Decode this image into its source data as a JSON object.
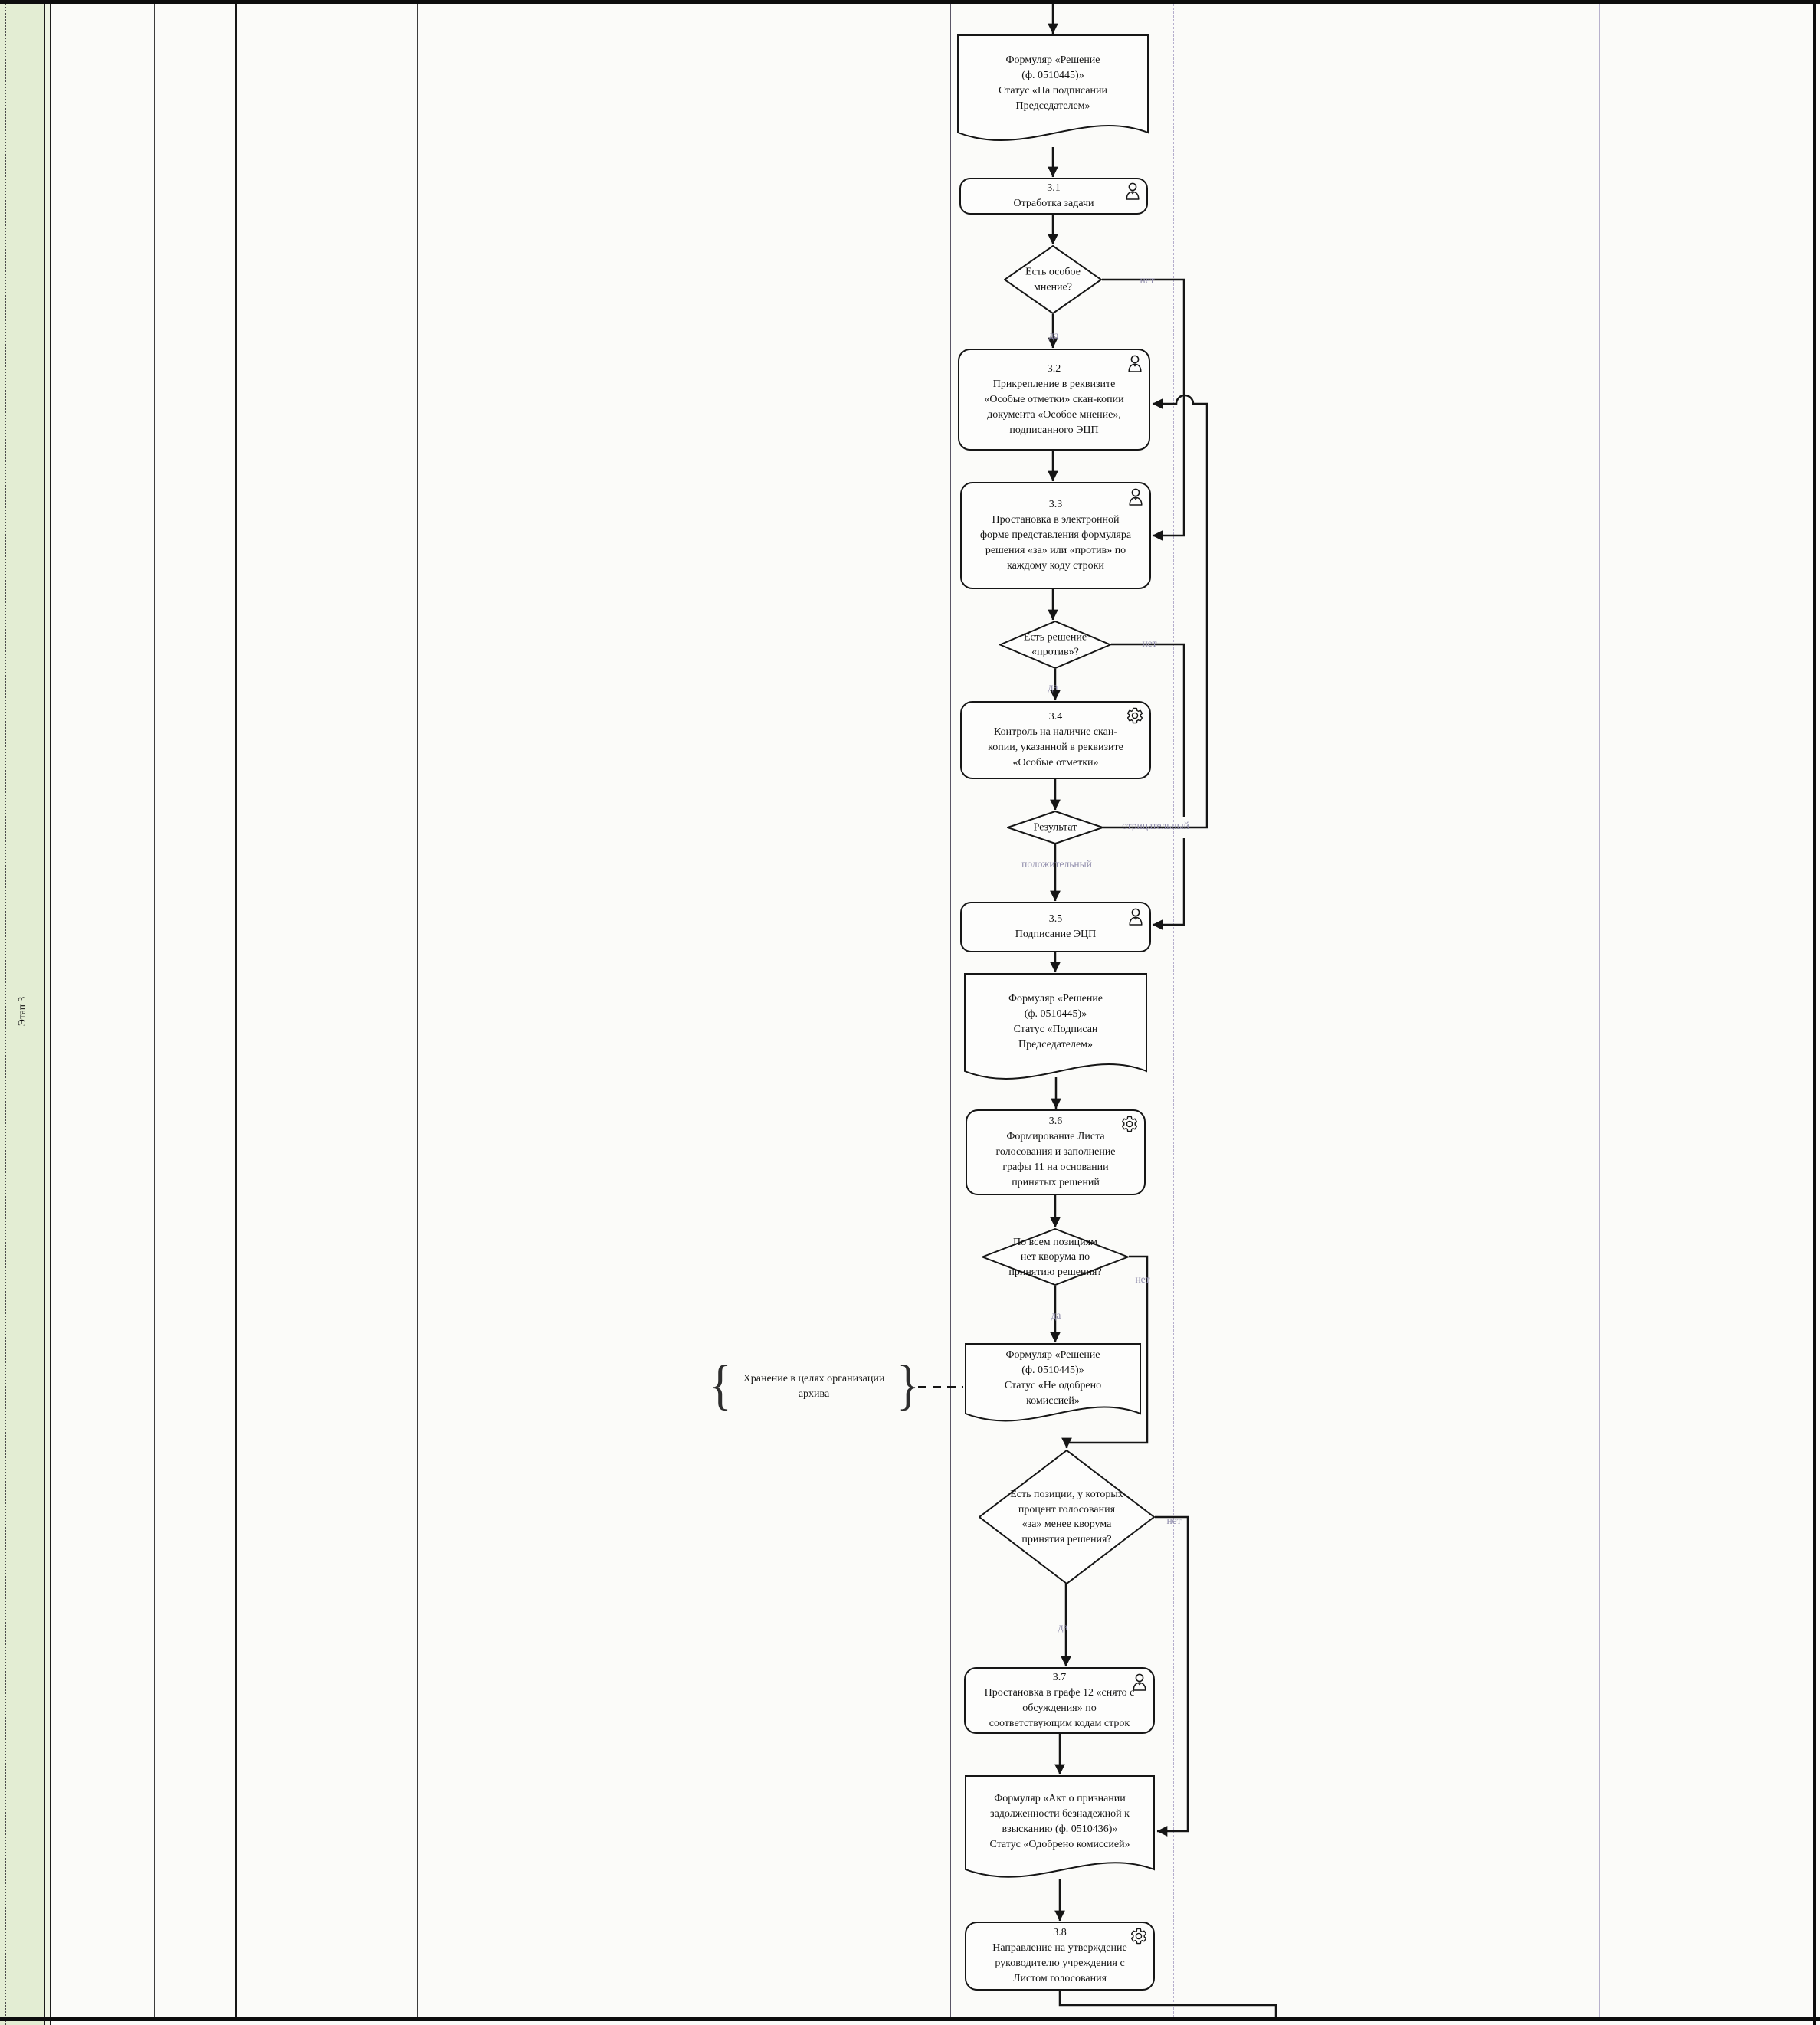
{
  "meta": {
    "stage_label": "Этап 3"
  },
  "colors": {
    "sidebar_green": "#e3edd3",
    "lane_purple": "#b5aecd",
    "edge_label_gray": "#8f8cab",
    "line_black": "#161616"
  },
  "labels": {
    "yes": "да",
    "no": "нет",
    "positive": "положительный",
    "negative": "отрицательный"
  },
  "nodes": {
    "doc_start": {
      "lines": [
        "Формуляр «Решение",
        "(ф. 0510445)»",
        "Статус «На подписании",
        "Председателем»"
      ]
    },
    "t31": {
      "num": "3.1",
      "icon": "user",
      "lines": [
        "Отработка задачи"
      ]
    },
    "d_opinion": {
      "lines": [
        "Есть особое",
        "мнение?"
      ]
    },
    "t32": {
      "num": "3.2",
      "icon": "user",
      "lines": [
        "Прикрепление в реквизите",
        "«Особые отметки» скан-копии",
        "документа «Особое мнение»,",
        "подписанного ЭЦП"
      ]
    },
    "t33": {
      "num": "3.3",
      "icon": "user",
      "lines": [
        "Простановка в электронной",
        "форме представления формуляра",
        "решения «за» или «против» по",
        "каждому коду строки"
      ]
    },
    "d_against": {
      "lines": [
        "Есть решение",
        "«против»?"
      ]
    },
    "t34": {
      "num": "3.4",
      "icon": "gear",
      "lines": [
        "Контроль на наличие скан-",
        "копии, указанной в реквизите",
        "«Особые отметки»"
      ]
    },
    "d_result": {
      "lines": [
        "Результат"
      ]
    },
    "t35": {
      "num": "3.5",
      "icon": "user",
      "lines": [
        "Подписание ЭЦП"
      ]
    },
    "doc_signed": {
      "lines": [
        "Формуляр «Решение",
        "(ф. 0510445)»",
        "Статус «Подписан",
        "Председателем»"
      ]
    },
    "t36": {
      "num": "3.6",
      "icon": "gear",
      "lines": [
        "Формирование Листа",
        "голосования и заполнение",
        "графы 11 на основании",
        "принятых решений"
      ]
    },
    "d_quorum": {
      "lines": [
        "По всем позициям",
        "нет кворума по",
        "принятию решения?"
      ]
    },
    "doc_rejected": {
      "lines": [
        "Формуляр «Решение",
        "(ф. 0510445)»",
        "Статус «Не одобрено",
        "комиссией»"
      ]
    },
    "annotation": {
      "brace_open": "{",
      "brace_close": "}",
      "lines": [
        "Хранение в целях организации",
        "архива"
      ]
    },
    "d_positions": {
      "lines": [
        "Есть позиции, у которых",
        "процент голосования",
        "«за» менее кворума",
        "принятия решения?"
      ]
    },
    "t37": {
      "num": "3.7",
      "icon": "user",
      "lines": [
        "Простановка в графе 12 «снято с",
        "обсуждения» по",
        "соответствующим кодам строк"
      ]
    },
    "doc_act": {
      "lines": [
        "Формуляр «Акт о признании",
        "задолженности безнадежной к",
        "взысканию (ф. 0510436)»",
        "Статус «Одобрено комиссией»"
      ]
    },
    "t38": {
      "num": "3.8",
      "icon": "gear",
      "lines": [
        "Направление на утверждение",
        "руководителю учреждения с",
        "Листом голосования"
      ]
    }
  }
}
